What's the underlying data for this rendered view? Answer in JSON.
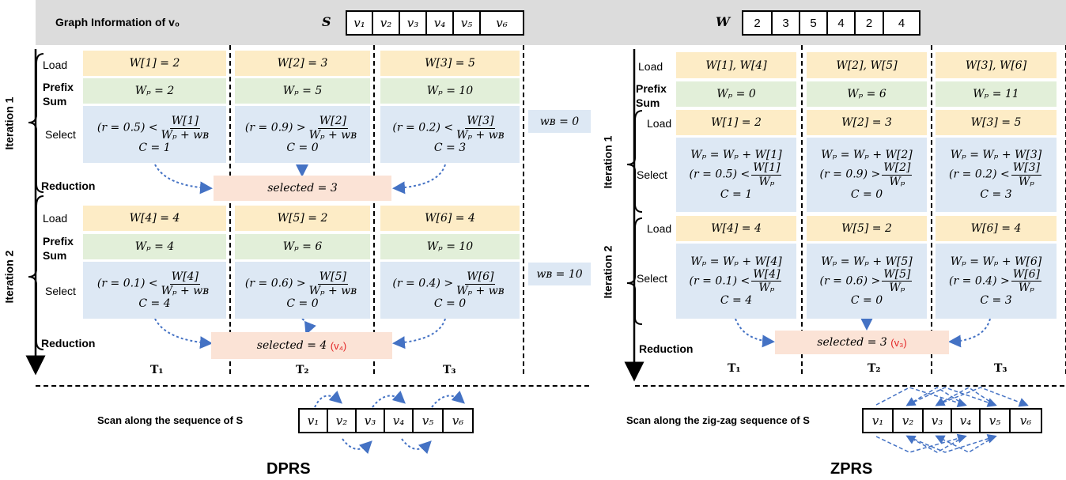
{
  "header": {
    "title": "Graph Information of v₀",
    "s_label": "S",
    "s_cells": [
      "v₁",
      "v₂",
      "v₃",
      "v₄",
      "v₅",
      "v₆"
    ],
    "w_label": "W",
    "w_cells": [
      "2",
      "3",
      "5",
      "4",
      "2",
      "4"
    ]
  },
  "dprs": {
    "title": "DPRS",
    "labels": {
      "load": "Load",
      "prefix": "Prefix",
      "sum": "Sum",
      "select": "Select",
      "reduction": "Reduction",
      "iter1": "Iteration 1",
      "iter2": "Iteration 2"
    },
    "iter1": {
      "load": [
        "W[1] = 2",
        "W[2] = 3",
        "W[3] = 5"
      ],
      "prefix": [
        "Wₚ = 2",
        "Wₚ = 5",
        "Wₚ = 10"
      ],
      "select": [
        {
          "lhs": "(r = 0.5) <",
          "num": "W[1]",
          "den": "Wₚ + wʙ",
          "c": "C = 1"
        },
        {
          "lhs": "(r = 0.9) >",
          "num": "W[2]",
          "den": "Wₚ + wʙ",
          "c": "C = 0"
        },
        {
          "lhs": "(r = 0.2) <",
          "num": "W[3]",
          "den": "Wₚ + wʙ",
          "c": "C = 3"
        }
      ],
      "wb": "wʙ = 0",
      "selected": "selected = 3"
    },
    "iter2": {
      "load": [
        "W[4] = 4",
        "W[5] = 2",
        "W[6] = 4"
      ],
      "prefix": [
        "Wₚ = 4",
        "Wₚ = 6",
        "Wₚ = 10"
      ],
      "select": [
        {
          "lhs": "(r = 0.1) <",
          "num": "W[4]",
          "den": "Wₚ + wʙ",
          "c": "C = 4"
        },
        {
          "lhs": "(r = 0.6) >",
          "num": "W[5]",
          "den": "Wₚ + wʙ",
          "c": "C = 0"
        },
        {
          "lhs": "(r = 0.4) >",
          "num": "W[6]",
          "den": "Wₚ + wʙ",
          "c": "C = 0"
        }
      ],
      "wb": "wʙ = 10",
      "selected": "selected = 4",
      "selected_v": "(v₄)"
    },
    "threads": [
      "T₁",
      "T₂",
      "T₃"
    ],
    "scan_label": "Scan along the sequence of S",
    "seq": [
      "v₁",
      "v₂",
      "v₃",
      "v₄",
      "v₅",
      "v₆"
    ]
  },
  "zprs": {
    "title": "ZPRS",
    "labels": {
      "load": "Load",
      "prefix": "Prefix",
      "sum": "Sum",
      "select": "Select",
      "reduction": "Reduction",
      "iter1": "Iteration 1",
      "iter2": "Iteration 2"
    },
    "pre_load": [
      "W[1], W[4]",
      "W[2], W[5]",
      "W[3], W[6]"
    ],
    "pre_prefix": [
      "Wₚ = 0",
      "Wₚ = 6",
      "Wₚ = 11"
    ],
    "iter1": {
      "load": [
        "W[1] = 2",
        "W[2] = 3",
        "W[3] = 5"
      ],
      "select": [
        {
          "upd": "Wₚ = Wₚ + W[1]",
          "lhs": "(r = 0.5) <",
          "num": "W[1]",
          "den": "Wₚ",
          "c": "C = 1"
        },
        {
          "upd": "Wₚ = Wₚ + W[2]",
          "lhs": "(r = 0.9) >",
          "num": "W[2]",
          "den": "Wₚ",
          "c": "C = 0"
        },
        {
          "upd": "Wₚ = Wₚ + W[3]",
          "lhs": "(r = 0.2) <",
          "num": "W[3]",
          "den": "Wₚ",
          "c": "C = 3"
        }
      ]
    },
    "iter2": {
      "load": [
        "W[4] = 4",
        "W[5] = 2",
        "W[6] = 4"
      ],
      "select": [
        {
          "upd": "Wₚ = Wₚ + W[4]",
          "lhs": "(r = 0.1) <",
          "num": "W[4]",
          "den": "Wₚ",
          "c": "C = 4"
        },
        {
          "upd": "Wₚ = Wₚ + W[5]",
          "lhs": "(r = 0.6) >",
          "num": "W[5]",
          "den": "Wₚ",
          "c": "C = 0"
        },
        {
          "upd": "Wₚ = Wₚ + W[6]",
          "lhs": "(r = 0.4) >",
          "num": "W[6]",
          "den": "Wₚ",
          "c": "C = 3"
        }
      ]
    },
    "selected": "selected = 3",
    "selected_v": "(v₃)",
    "threads": [
      "T₁",
      "T₂",
      "T₃"
    ],
    "scan_label": "Scan along the zig-zag sequence of S",
    "seq": [
      "v₁",
      "v₂",
      "v₃",
      "v₄",
      "v₅",
      "v₆"
    ]
  },
  "colors": {
    "arrow": "#4472c4",
    "red": "#e32727",
    "load": "#fdecc6",
    "prefix": "#e2efd9",
    "select": "#dde8f4",
    "reduce": "#fbe3d6"
  }
}
